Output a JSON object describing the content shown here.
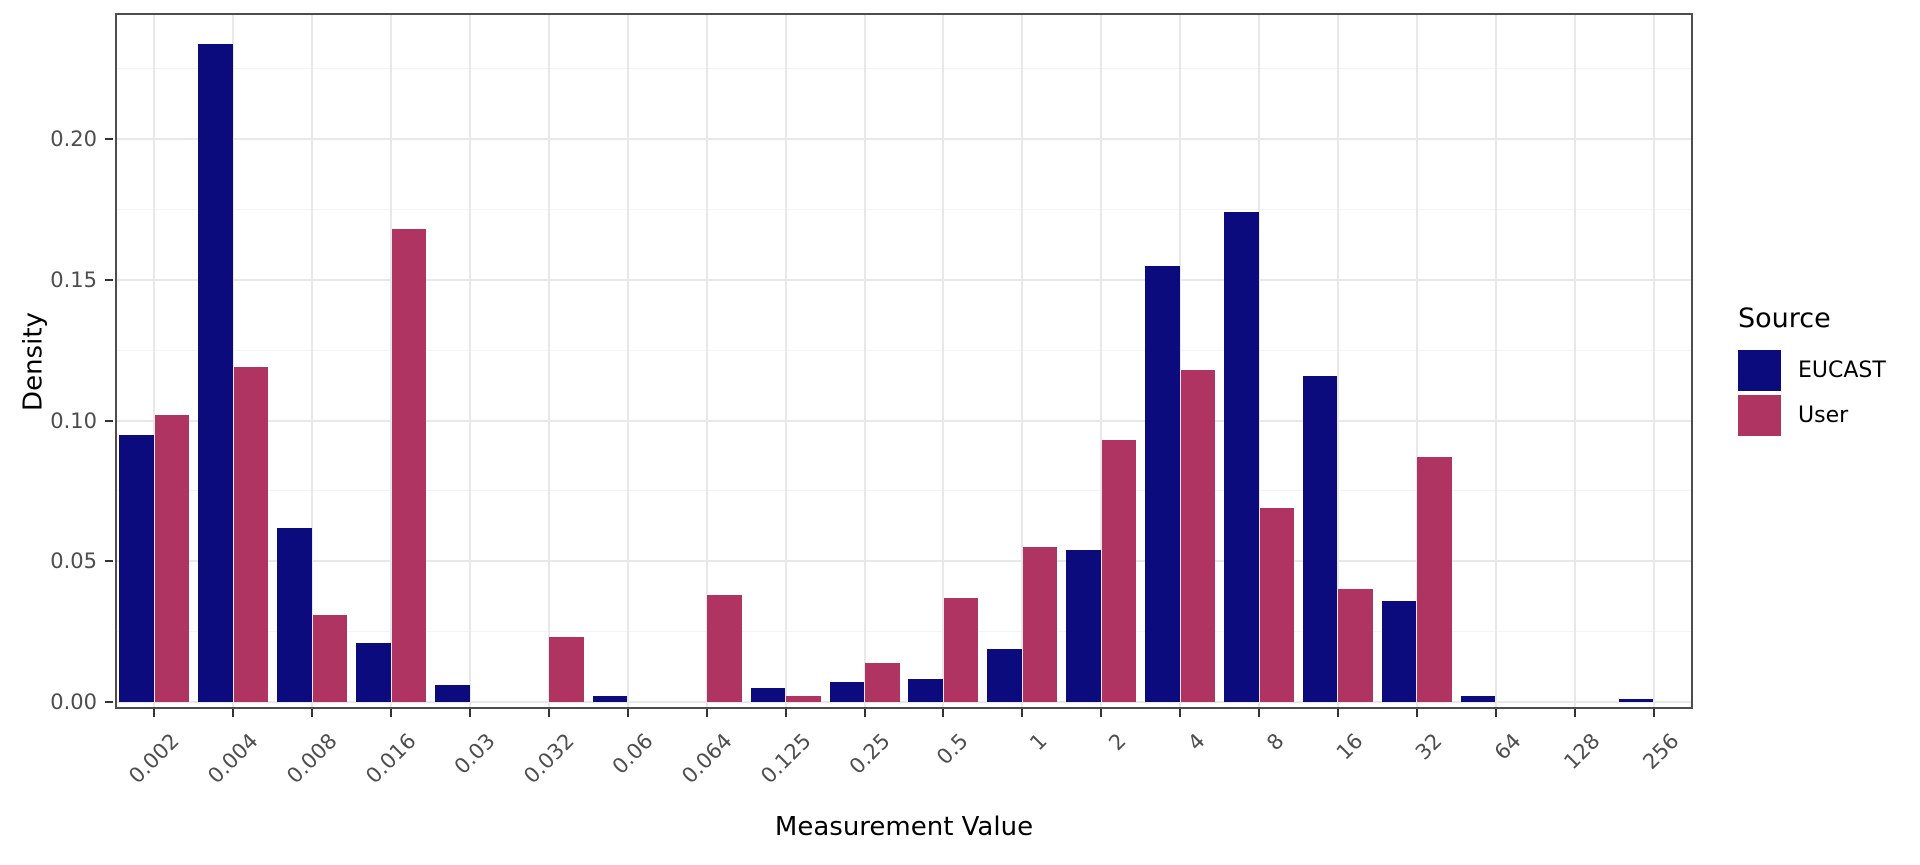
{
  "chart_data": {
    "type": "bar",
    "title": "",
    "xlabel": "Measurement Value",
    "ylabel": "Density",
    "bar_layout": "dodged",
    "grid": "major-and-minor",
    "legend_title": "Source",
    "legend_position": "right",
    "categories": [
      "0.002",
      "0.004",
      "0.008",
      "0.016",
      "0.03",
      "0.032",
      "0.06",
      "0.064",
      "0.125",
      "0.25",
      "0.5",
      "1",
      "2",
      "4",
      "8",
      "16",
      "32",
      "64",
      "128",
      "256"
    ],
    "series": [
      {
        "name": "EUCAST",
        "color": "#0B0B7E",
        "values": [
          0.095,
          0.234,
          0.062,
          0.021,
          0.006,
          0,
          0.002,
          0,
          0.005,
          0.007,
          0.008,
          0.019,
          0.054,
          0.155,
          0.174,
          0.116,
          0.036,
          0.002,
          0,
          0.001
        ]
      },
      {
        "name": "User",
        "color": "#B03462",
        "values": [
          0.102,
          0.119,
          0.031,
          0.168,
          0,
          0.023,
          0,
          0.038,
          0.002,
          0.014,
          0.037,
          0.055,
          0.093,
          0.118,
          0.069,
          0.04,
          0.087,
          0,
          0,
          0
        ]
      }
    ],
    "y_ticks": [
      "0.00",
      "0.05",
      "0.10",
      "0.15",
      "0.20"
    ],
    "y_tick_values": [
      0,
      0.05,
      0.1,
      0.15,
      0.2
    ],
    "minor_tick_values": [
      0.025,
      0.075,
      0.125,
      0.175,
      0.225
    ],
    "ylim": [
      0,
      0.245
    ]
  },
  "colors": {
    "eucast": "#0B0B7E",
    "user": "#B03462",
    "grid_major": "#E8E8E8",
    "grid_minor": "#F4F4F4",
    "panel_border": "#4D4D4D",
    "axis_text": "#4D4D4D",
    "title_text": "#000000",
    "background": "#FFFFFF"
  }
}
